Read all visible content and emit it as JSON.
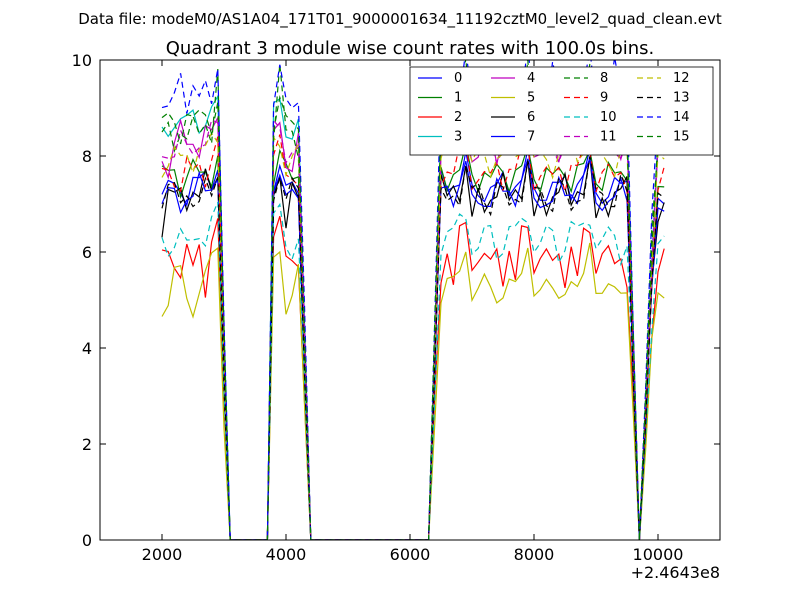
{
  "chart_data": {
    "type": "line",
    "suptitle": "Data file: modeM0/AS1A04_171T01_9000001634_11192cztM0_level2_quad_clean.evt",
    "title": "Quadrant 3 module wise count rates with 100.0s bins.",
    "xlabel": "",
    "ylabel": "",
    "xlim": [
      1000,
      11000
    ],
    "ylim": [
      0,
      10
    ],
    "x_offset_label": "+2.4643e8",
    "xticks": [
      2000,
      4000,
      6000,
      8000,
      10000
    ],
    "xtick_labels": [
      "2000",
      "4000",
      "6000",
      "8000",
      "10000"
    ],
    "yticks": [
      0,
      2,
      4,
      6,
      8,
      10
    ],
    "ytick_labels": [
      "0",
      "2",
      "4",
      "6",
      "8",
      "10"
    ],
    "grid": false,
    "legend_position": "top-right",
    "legend_columns": 4,
    "x": [
      2000,
      2100,
      2200,
      2300,
      2400,
      2500,
      2600,
      2700,
      2800,
      2900,
      3000,
      3100,
      3200,
      3300,
      3400,
      3500,
      3600,
      3700,
      3800,
      3900,
      4000,
      4100,
      4200,
      4300,
      4400,
      4500,
      4600,
      4700,
      4800,
      4900,
      5000,
      5100,
      5200,
      5300,
      5400,
      5500,
      5600,
      5700,
      5800,
      5900,
      6000,
      6100,
      6200,
      6300,
      6400,
      6500,
      6600,
      6700,
      6800,
      6900,
      7000,
      7100,
      7200,
      7300,
      7400,
      7500,
      7600,
      7700,
      7800,
      7900,
      8000,
      8100,
      8200,
      8300,
      8400,
      8500,
      8600,
      8700,
      8800,
      8900,
      9000,
      9100,
      9200,
      9300,
      9400,
      9500,
      9600,
      9700,
      9800,
      9900,
      10000,
      10100
    ],
    "series": [
      {
        "name": "0",
        "color": "#0000ff",
        "dash": "solid",
        "base": [
          7.2,
          7.25,
          7.3,
          7.4,
          7.2,
          7.5,
          7.3,
          7.6,
          7.5,
          7.9
        ]
      },
      {
        "name": "1",
        "color": "#008000",
        "dash": "solid",
        "base": [
          7.6,
          7.5,
          7.8,
          7.4,
          7.6,
          7.7,
          7.5,
          7.8,
          7.6,
          8.0
        ]
      },
      {
        "name": "2",
        "color": "#ff0000",
        "dash": "solid",
        "base": [
          5.8,
          6.0,
          5.9,
          5.6,
          6.0,
          5.5,
          6.2,
          5.3,
          6.3,
          6.5
        ]
      },
      {
        "name": "3",
        "color": "#00bfbf",
        "dash": "solid",
        "base": [
          8.5,
          8.6,
          8.8,
          8.7,
          8.6,
          8.9,
          8.7,
          8.8,
          8.9,
          9.0
        ]
      },
      {
        "name": "4",
        "color": "#bf00bf",
        "dash": "solid",
        "base": [
          8.0,
          7.8,
          8.3,
          8.5,
          8.1,
          8.4,
          8.2,
          8.6,
          8.3,
          8.7
        ]
      },
      {
        "name": "5",
        "color": "#bfbf00",
        "dash": "solid",
        "base": [
          4.9,
          5.0,
          5.5,
          5.5,
          5.1,
          4.9,
          5.2,
          5.4,
          5.8,
          6.2
        ]
      },
      {
        "name": "6",
        "color": "#000000",
        "dash": "solid",
        "base": [
          6.5,
          7.2,
          7.0,
          7.3,
          7.1,
          7.4,
          7.0,
          7.5,
          7.3,
          7.8
        ]
      },
      {
        "name": "7",
        "color": "#0000ff",
        "dash": "solid",
        "base": [
          7.0,
          7.1,
          7.2,
          7.0,
          7.3,
          7.1,
          7.4,
          7.2,
          7.5,
          7.7
        ]
      },
      {
        "name": "8",
        "color": "#008000",
        "dash": "dashed",
        "base": [
          8.3,
          8.5,
          8.2,
          8.7,
          8.4,
          8.6,
          8.3,
          8.8,
          8.5,
          9.8
        ]
      },
      {
        "name": "9",
        "color": "#ff0000",
        "dash": "dashed",
        "base": [
          7.5,
          7.7,
          7.6,
          7.4,
          7.8,
          7.5,
          7.9,
          7.6,
          8.0,
          8.2
        ]
      },
      {
        "name": "10",
        "color": "#00bfbf",
        "dash": "dashed",
        "base": [
          6.2,
          6.1,
          6.3,
          6.4,
          6.0,
          6.2,
          6.5,
          6.3,
          6.6,
          6.8
        ]
      },
      {
        "name": "11",
        "color": "#bf00bf",
        "dash": "dashed",
        "base": [
          8.1,
          8.2,
          8.0,
          8.3,
          8.1,
          8.2,
          8.4,
          8.2,
          8.5,
          8.6
        ]
      },
      {
        "name": "12",
        "color": "#bfbf00",
        "dash": "dashed",
        "base": [
          7.8,
          7.9,
          8.0,
          7.8,
          8.1,
          7.9,
          8.2,
          8.0,
          8.3,
          8.4
        ]
      },
      {
        "name": "13",
        "color": "#000000",
        "dash": "dashed",
        "base": [
          7.1,
          7.3,
          7.2,
          7.0,
          7.4,
          7.1,
          6.9,
          7.3,
          7.2,
          7.8
        ]
      },
      {
        "name": "14",
        "color": "#0000ff",
        "dash": "dashed",
        "base": [
          9.0,
          8.8,
          9.2,
          9.9,
          9.1,
          9.4,
          9.0,
          9.5,
          9.3,
          10.0
        ]
      },
      {
        "name": "15",
        "color": "#008000",
        "dash": "dashed",
        "base": [
          8.6,
          8.7,
          8.8,
          8.5,
          8.9,
          8.6,
          8.8,
          9.0,
          8.7,
          9.1
        ]
      }
    ]
  }
}
